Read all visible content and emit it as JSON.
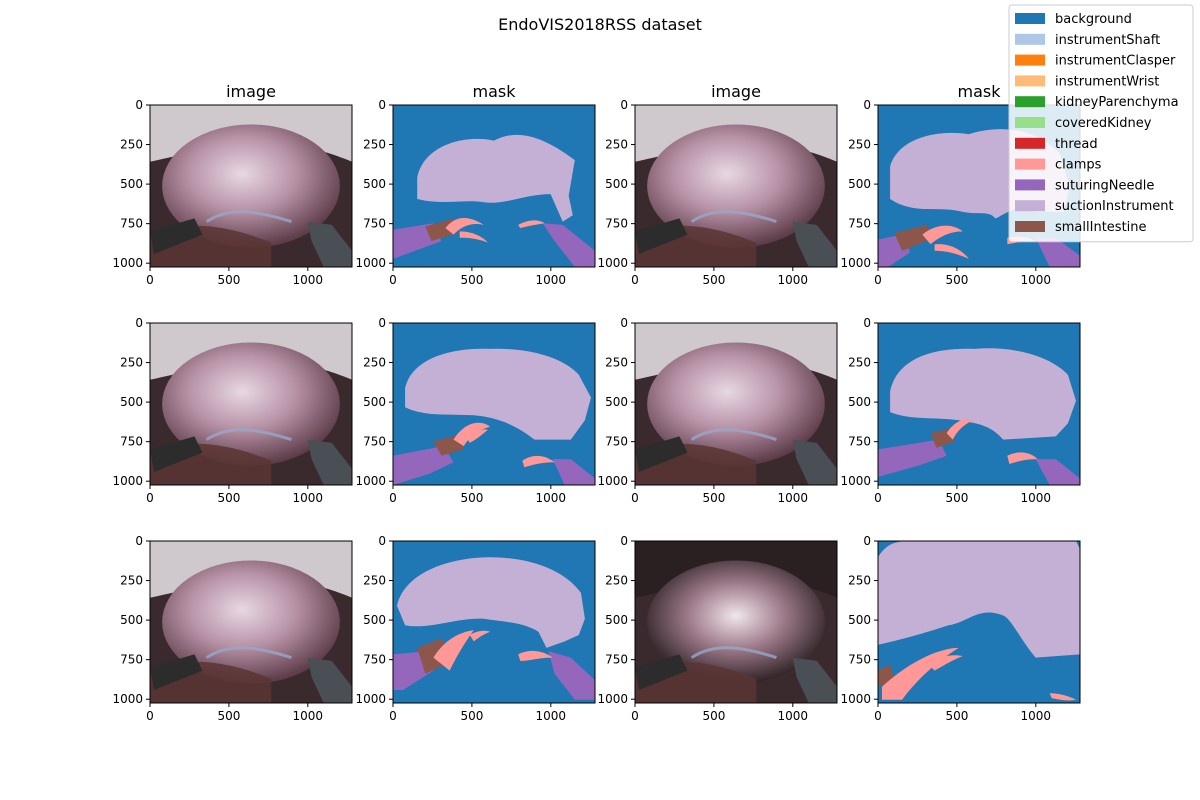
{
  "title": "EndoVIS2018RSS dataset",
  "colors": {
    "background": "#1f77b4",
    "instrumentShaft": "#aec7e8",
    "instrumentClasper": "#ff7f0e",
    "instrumentWrist": "#ffbb78",
    "kidneyParenchyma": "#2ca02c",
    "coveredKidney": "#98df8a",
    "thread": "#d62728",
    "clamps": "#ff9896",
    "suturingNeedle": "#9467bd",
    "suctionInstrument": "#c5b0d5",
    "smallIntestine": "#8c564b"
  },
  "chart_data": {
    "type": "image-grid",
    "rows": 3,
    "columns": 4,
    "column_titles": [
      "image",
      "mask",
      "image",
      "mask"
    ],
    "image_extent": {
      "width": 1280,
      "height": 1024
    },
    "x_ticks": [
      0,
      500,
      1000
    ],
    "y_ticks": [
      0,
      250,
      500,
      750,
      1000
    ],
    "legend": {
      "placement": "top-right",
      "entries": [
        {
          "label": "background",
          "color": "#1f77b4"
        },
        {
          "label": "instrumentShaft",
          "color": "#aec7e8"
        },
        {
          "label": "instrumentClasper",
          "color": "#ff7f0e"
        },
        {
          "label": "instrumentWrist",
          "color": "#ffbb78"
        },
        {
          "label": "kidneyParenchyma",
          "color": "#2ca02c"
        },
        {
          "label": "coveredKidney",
          "color": "#98df8a"
        },
        {
          "label": "thread",
          "color": "#d62728"
        },
        {
          "label": "clamps",
          "color": "#ff9896"
        },
        {
          "label": "suturingNeedle",
          "color": "#9467bd"
        },
        {
          "label": "suctionInstrument",
          "color": "#c5b0d5"
        },
        {
          "label": "smallIntestine",
          "color": "#8c564b"
        }
      ]
    },
    "panels": [
      {
        "row": 0,
        "col": 0,
        "kind": "image"
      },
      {
        "row": 0,
        "col": 1,
        "kind": "mask"
      },
      {
        "row": 0,
        "col": 2,
        "kind": "image"
      },
      {
        "row": 0,
        "col": 3,
        "kind": "mask"
      },
      {
        "row": 1,
        "col": 0,
        "kind": "image"
      },
      {
        "row": 1,
        "col": 1,
        "kind": "mask"
      },
      {
        "row": 1,
        "col": 2,
        "kind": "image"
      },
      {
        "row": 1,
        "col": 3,
        "kind": "mask"
      },
      {
        "row": 2,
        "col": 0,
        "kind": "image"
      },
      {
        "row": 2,
        "col": 1,
        "kind": "mask"
      },
      {
        "row": 2,
        "col": 2,
        "kind": "image"
      },
      {
        "row": 2,
        "col": 3,
        "kind": "mask"
      }
    ]
  }
}
